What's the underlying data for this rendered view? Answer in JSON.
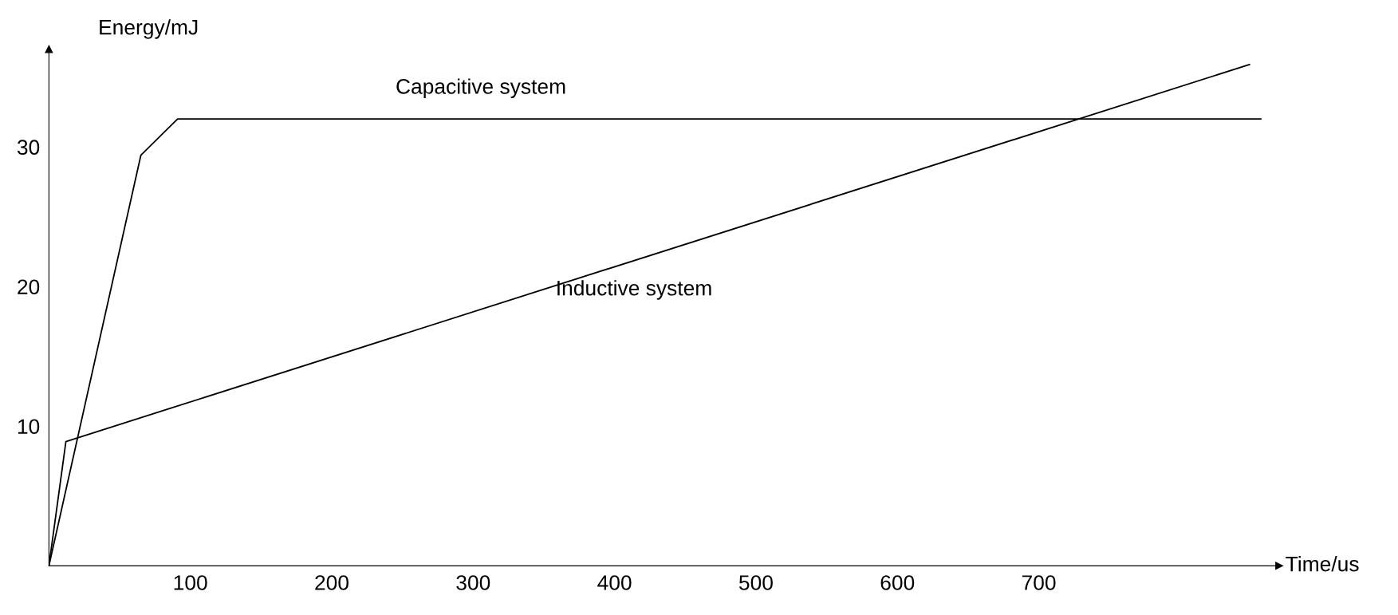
{
  "chart_data": {
    "type": "line",
    "xlabel": "Time/us",
    "ylabel": "Energy/mJ",
    "xlim": [
      0,
      870
    ],
    "ylim": [
      0,
      37
    ],
    "xticks": [
      100,
      200,
      300,
      400,
      500,
      600,
      700
    ],
    "yticks": [
      10,
      20,
      30
    ],
    "grid": false,
    "legend": false,
    "marker": "none",
    "line_style": "solid",
    "series": [
      {
        "name": "Capacitive system",
        "color": "#000000",
        "x": [
          0,
          65,
          91,
          857
        ],
        "values": [
          0,
          29.4,
          32.0,
          32.0
        ]
      },
      {
        "name": "Inductive system",
        "color": "#000000",
        "x": [
          0,
          12,
          849
        ],
        "values": [
          0,
          8.9,
          35.9
        ]
      }
    ]
  }
}
